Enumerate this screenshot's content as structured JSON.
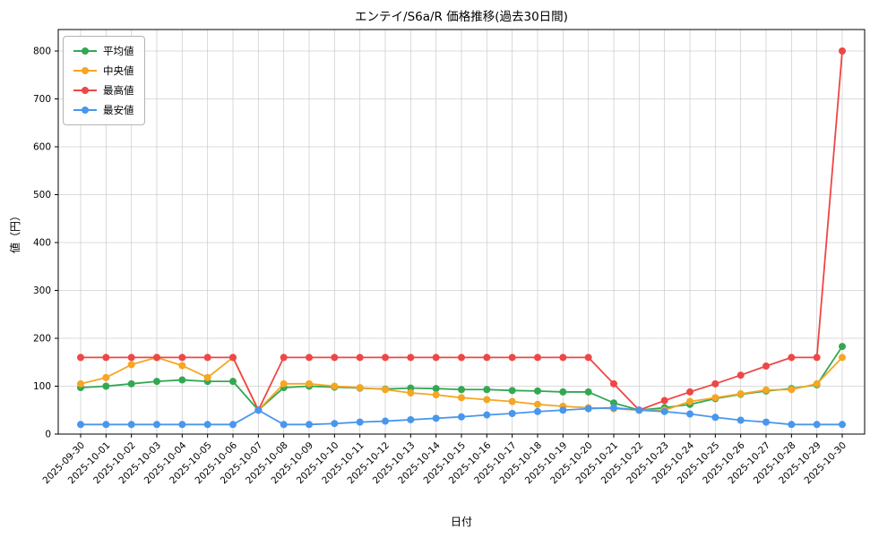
{
  "chart_data": {
    "type": "line",
    "title": "エンテイ/S6a/R 価格推移(過去30日間)",
    "xlabel": "日付",
    "ylabel": "値（円）",
    "ylim": [
      0,
      800
    ],
    "yticks": [
      0,
      100,
      200,
      300,
      400,
      500,
      600,
      700,
      800
    ],
    "grid": true,
    "legend_position": "upper-left",
    "marker": "circle",
    "grid_color": "#cfcfcf",
    "categories": [
      "2025-09-30",
      "2025-10-01",
      "2025-10-02",
      "2025-10-03",
      "2025-10-04",
      "2025-10-05",
      "2025-10-06",
      "2025-10-07",
      "2025-10-08",
      "2025-10-09",
      "2025-10-10",
      "2025-10-11",
      "2025-10-12",
      "2025-10-13",
      "2025-10-14",
      "2025-10-15",
      "2025-10-16",
      "2025-10-17",
      "2025-10-18",
      "2025-10-19",
      "2025-10-20",
      "2025-10-21",
      "2025-10-22",
      "2025-10-23",
      "2025-10-24",
      "2025-10-25",
      "2025-10-26",
      "2025-10-27",
      "2025-10-28",
      "2025-10-29",
      "2025-10-30"
    ],
    "series": [
      {
        "name": "平均値",
        "color": "#33a853",
        "values": [
          97,
          100,
          105,
          110,
          113,
          110,
          110,
          50,
          97,
          100,
          98,
          96,
          94,
          96,
          95,
          93,
          93,
          91,
          90,
          88,
          88,
          65,
          50,
          55,
          62,
          74,
          83,
          90,
          95,
          103,
          183
        ]
      },
      {
        "name": "中央値",
        "color": "#f5a623",
        "values": [
          105,
          118,
          145,
          160,
          143,
          118,
          160,
          50,
          105,
          105,
          100,
          97,
          93,
          86,
          82,
          76,
          72,
          68,
          62,
          58,
          55,
          53,
          50,
          50,
          68,
          76,
          84,
          92,
          93,
          105,
          160
        ]
      },
      {
        "name": "最高値",
        "color": "#ef4646",
        "values": [
          160,
          160,
          160,
          160,
          160,
          160,
          160,
          50,
          160,
          160,
          160,
          160,
          160,
          160,
          160,
          160,
          160,
          160,
          160,
          160,
          160,
          105,
          50,
          70,
          88,
          105,
          123,
          142,
          160,
          160,
          800
        ]
      },
      {
        "name": "最安値",
        "color": "#4897ec",
        "values": [
          20,
          20,
          20,
          20,
          20,
          20,
          20,
          50,
          20,
          20,
          22,
          25,
          27,
          30,
          33,
          36,
          40,
          43,
          47,
          50,
          53,
          55,
          50,
          47,
          42,
          35,
          29,
          25,
          20,
          20,
          20
        ]
      }
    ]
  }
}
